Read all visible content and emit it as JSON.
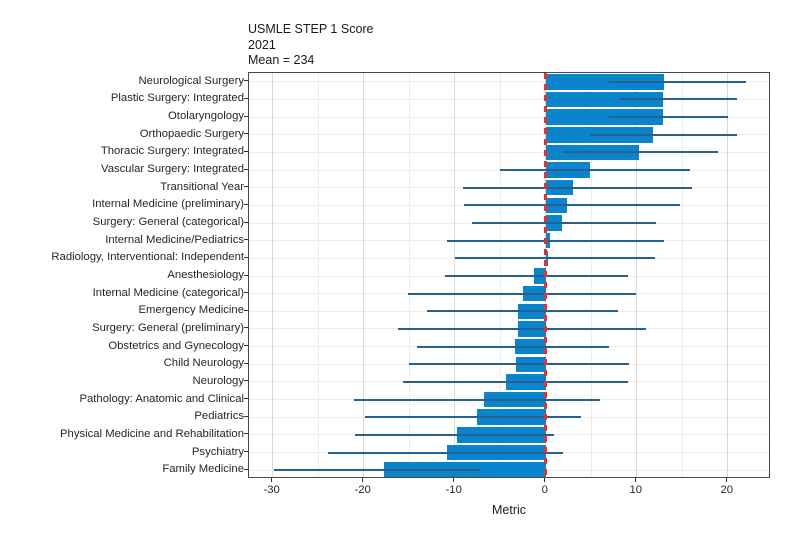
{
  "chart_data": {
    "type": "bar",
    "orientation": "horizontal",
    "title_lines": [
      "USMLE STEP 1 Score",
      "2021",
      "Mean = 234"
    ],
    "xlabel": "Metric",
    "categories": [
      "Neurological Surgery",
      "Plastic Surgery: Integrated",
      "Otolaryngology",
      "Orthopaedic Surgery",
      "Thoracic Surgery: Integrated",
      "Vascular Surgery: Integrated",
      "Transitional Year",
      "Internal Medicine (preliminary)",
      "Surgery: General (categorical)",
      "Internal Medicine/Pediatrics",
      "Radiology, Interventional: Independent",
      "Anesthesiology",
      "Internal Medicine (categorical)",
      "Emergency Medicine",
      "Surgery: General (preliminary)",
      "Obstetrics and Gynecology",
      "Child Neurology",
      "Neurology",
      "Pathology: Anatomic and Clinical",
      "Pediatrics",
      "Physical Medicine and Rehabilitation",
      "Psychiatry",
      "Family Medicine"
    ],
    "values": [
      13.0,
      12.9,
      12.9,
      11.8,
      10.2,
      4.9,
      3.0,
      2.3,
      1.8,
      0.5,
      0.3,
      -1.3,
      -2.5,
      -3.0,
      -3.0,
      -3.4,
      -3.3,
      -4.4,
      -6.8,
      -7.6,
      -9.7,
      -10.9,
      -17.8
    ],
    "error_low": [
      6.9,
      8.0,
      7.0,
      4.9,
      1.9,
      -5.0,
      -9.1,
      -9.0,
      -8.1,
      -10.8,
      -10.0,
      -11.1,
      -15.1,
      -13.0,
      -16.2,
      -14.1,
      -15.0,
      -15.7,
      -21.1,
      -19.9,
      -21.0,
      -23.9,
      -29.9
    ],
    "error_high": [
      22.0,
      21.0,
      20.0,
      21.0,
      18.9,
      15.9,
      16.1,
      14.8,
      12.1,
      13.0,
      12.0,
      9.0,
      9.9,
      7.9,
      11.0,
      7.0,
      9.1,
      9.0,
      6.0,
      3.9,
      0.9,
      1.9,
      -7.1
    ],
    "zero_line": 0,
    "xlim": [
      -32.6,
      24.75
    ],
    "x_major_ticks": [
      -30,
      -20,
      -10,
      0,
      10,
      20
    ],
    "x_major_tick_labels": [
      "-30",
      "-20",
      "-10",
      "0",
      "10",
      "20"
    ],
    "x_minor_ticks": [
      -25,
      -15,
      -5,
      5,
      15
    ],
    "grid": true,
    "legend": false,
    "colors": {
      "bar": "#0a85cd",
      "error_bar": "#27618e",
      "zero_line": "#ee2b2d",
      "grid_major": "#d9d9d9",
      "grid_minor": "#ececec",
      "panel_border": "#4a4a4a",
      "tick": "#333333",
      "text": "#1a1a1a",
      "background": "#ffffff"
    }
  }
}
